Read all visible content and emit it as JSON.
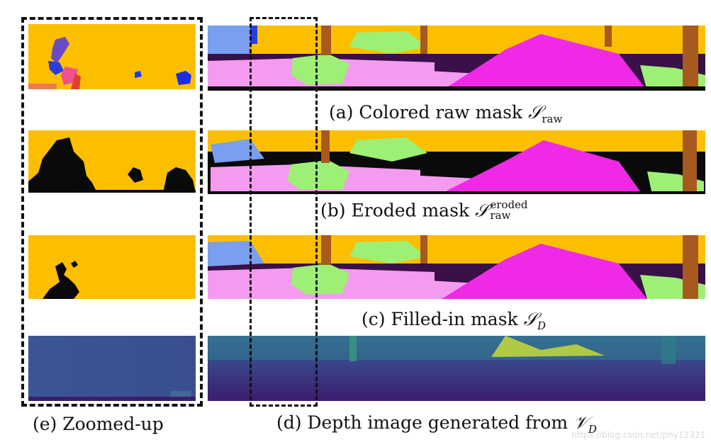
{
  "captions": {
    "a_prefix": "(a) Colored raw mask ",
    "a_symbol": "𝒮",
    "a_sub": "raw",
    "b_prefix": "(b) Eroded mask ",
    "b_symbol": "𝒮",
    "b_sup": "eroded",
    "b_sub": "raw",
    "c_prefix": "(c) Filled-in mask ",
    "c_symbol": "𝒮",
    "c_sub": "D",
    "d_prefix": "(d) Depth image generated from ",
    "d_symbol": "𝒱",
    "d_sub": "D",
    "e": "(e) Zoomed-up"
  },
  "watermark": "https://blog.csdn.net/phy12321",
  "colors": {
    "sky": "#fcbf00",
    "magenta": "#f029e6",
    "pink": "#f49bf0",
    "green": "#9df075",
    "blue": "#7a9ef0",
    "trunk": "#a65a1e",
    "black": "#0a0a0a",
    "depth_dark": "#3e2c78",
    "depth_mid": "#3e5b98"
  }
}
